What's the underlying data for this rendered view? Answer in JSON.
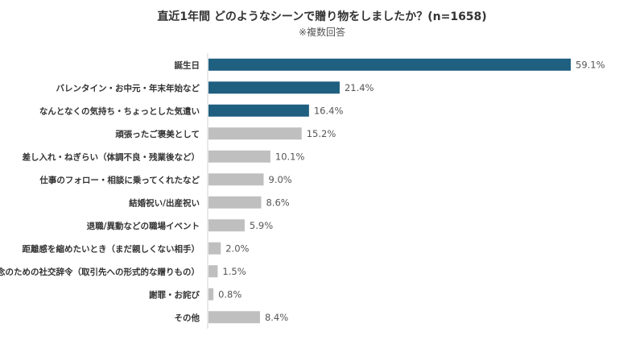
{
  "chart_data": {
    "type": "bar",
    "orientation": "horizontal",
    "title": "直近1年間 どのようなシーンで贈り物をしましたか？(n=1658)",
    "subtitle": "※複数回答",
    "categories": [
      "誕生日",
      "バレンタイン・お中元・年末年始など",
      "なんとなくの気持ち・ちょっとした気遣い",
      "頑張ったご褒美として",
      "差し入れ・ねぎらい（体調不良・残業後など）",
      "仕事のフォロー・相談に乗ってくれたなど",
      "結婚祝い/出産祝い",
      "退職/異動などの職場イベント",
      "距離感を縮めたいとき（まだ親しくない相手）",
      "念のための社交辞令（取引先への形式的な贈りもの）",
      "謝罪・お詫び",
      "その他"
    ],
    "values": [
      59.1,
      21.4,
      16.4,
      15.2,
      10.1,
      9.0,
      8.6,
      5.9,
      2.0,
      1.5,
      0.8,
      8.4
    ],
    "labels": [
      "59.1%",
      "21.4%",
      "16.4%",
      "15.2%",
      "10.1%",
      "9.0%",
      "8.6%",
      "5.9%",
      "2.0%",
      "1.5%",
      "0.8%",
      "8.4%"
    ],
    "highlight_count": 3,
    "xlim": [
      0,
      59.1
    ],
    "colors": {
      "highlight": "#1f5f80",
      "other": "#bfbfbf",
      "axis": "#d0d0d0"
    }
  }
}
